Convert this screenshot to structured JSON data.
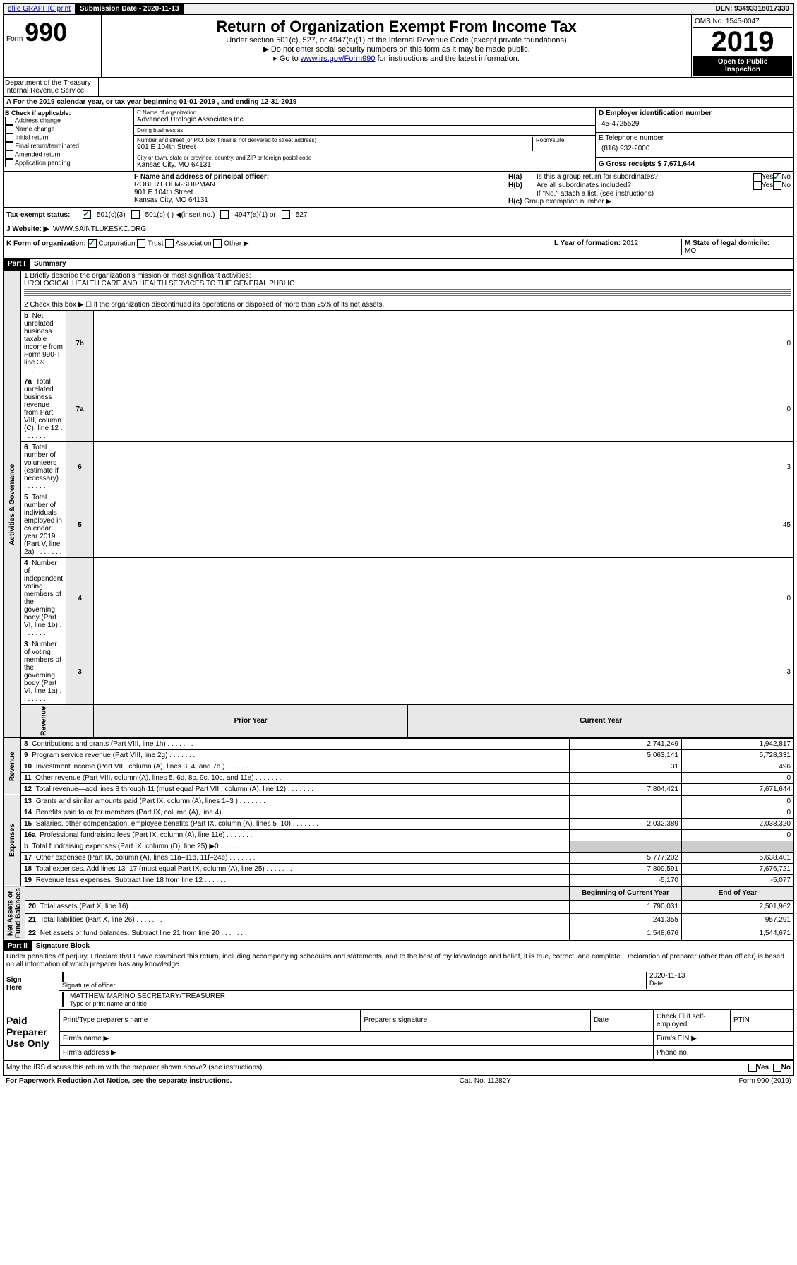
{
  "topbar": {
    "efile": "efile GRAPHIC print",
    "submission_label": "Submission Date - 2020-11-13",
    "dln": "DLN: 93493318017330"
  },
  "header": {
    "form": "Form",
    "form_no": "990",
    "title": "Return of Organization Exempt From Income Tax",
    "subtitle": "Under section 501(c), 527, or 4947(a)(1) of the Internal Revenue Code (except private foundations)",
    "note1": "Do not enter social security numbers on this form as it may be made public.",
    "note2_pre": "Go to ",
    "note2_link": "www.irs.gov/Form990",
    "note2_post": " for instructions and the latest information.",
    "dept": "Department of the Treasury\nInternal Revenue Service",
    "omb": "OMB No. 1545-0047",
    "year": "2019",
    "open": "Open to Public\nInspection"
  },
  "row_a": {
    "text": "A For the 2019 calendar year, or tax year beginning 01-01-2019   , and ending 12-31-2019"
  },
  "col_b": {
    "header": "B Check if applicable:",
    "items": [
      "Address change",
      "Name change",
      "Initial return",
      "Final return/terminated",
      "Amended return",
      "Application pending"
    ]
  },
  "col_c": {
    "name_label": "C Name of organization",
    "name": "Advanced Urologic Associates Inc",
    "dba_label": "Doing business as",
    "dba": "",
    "addr_label": "Number and street (or P.O. box if mail is not delivered to street address)",
    "room_label": "Room/suite",
    "addr": "901 E 104th Street",
    "city_label": "City or town, state or province, country, and ZIP or foreign postal code",
    "city": "Kansas City, MO  64131"
  },
  "col_d": {
    "ein_label": "D Employer identification number",
    "ein": "45-4725529",
    "tel_label": "E Telephone number",
    "tel": "(816) 932-2000",
    "gross_label": "G Gross receipts $ 7,671,644"
  },
  "officer": {
    "f_label": "F Name and address of principal officer:",
    "name": "ROBERT OLM-SHIPMAN",
    "addr1": "901 E 104th Street",
    "addr2": "Kansas City, MO  64131"
  },
  "h": {
    "ha_label": "H(a)",
    "ha_text": "Is this a group return for subordinates?",
    "hb_label": "H(b)",
    "hb_text": "Are all subordinates included?",
    "hb_note": "If \"No,\" attach a list. (see instructions)",
    "hc_label": "H(c)",
    "hc_text": "Group exemption number ▶",
    "yes": "Yes",
    "no": "No"
  },
  "tax_status": {
    "label": "Tax-exempt status:",
    "c501c3": "501(c)(3)",
    "c501c": "501(c) (  ) ◀(insert no.)",
    "c4947": "4947(a)(1) or",
    "c527": "527"
  },
  "website": {
    "label": "J   Website: ▶",
    "value": "WWW.SAINTLUKESKC.ORG"
  },
  "korg": {
    "label": "K Form of organization:",
    "corp": "Corporation",
    "trust": "Trust",
    "assoc": "Association",
    "other": "Other ▶",
    "l_label": "L Year of formation: ",
    "l_val": "2012",
    "m_label": "M State of legal domicile:",
    "m_val": "MO"
  },
  "part1": {
    "label": "Part I",
    "title": "Summary",
    "q1": "1  Briefly describe the organization's mission or most significant activities:",
    "q1_ans": "UROLOGICAL HEALTH CARE AND HEALTH SERVICES TO THE GENERAL PUBLIC",
    "q2": "2   Check this box ▶ ☐  if the organization discontinued its operations or disposed of more than 25% of its net assets.",
    "rows_gov": [
      {
        "n": "3",
        "t": "Number of voting members of the governing body (Part VI, line 1a)",
        "c": "3",
        "v": "3"
      },
      {
        "n": "4",
        "t": "Number of independent voting members of the governing body (Part VI, line 1b)",
        "c": "4",
        "v": "0"
      },
      {
        "n": "5",
        "t": "Total number of individuals employed in calendar year 2019 (Part V, line 2a)",
        "c": "5",
        "v": "45"
      },
      {
        "n": "6",
        "t": "Total number of volunteers (estimate if necessary)",
        "c": "6",
        "v": "3"
      },
      {
        "n": "7a",
        "t": "Total unrelated business revenue from Part VIII, column (C), line 12",
        "c": "7a",
        "v": "0"
      },
      {
        "n": " b",
        "t": "Net unrelated business taxable income from Form 990-T, line 39",
        "c": "7b",
        "v": "0"
      }
    ],
    "year_headers": {
      "prior": "Prior Year",
      "current": "Current Year"
    },
    "rows_rev": [
      {
        "n": "8",
        "t": "Contributions and grants (Part VIII, line 1h)",
        "p": "2,741,249",
        "c": "1,942,817"
      },
      {
        "n": "9",
        "t": "Program service revenue (Part VIII, line 2g)",
        "p": "5,063,141",
        "c": "5,728,331"
      },
      {
        "n": "10",
        "t": "Investment income (Part VIII, column (A), lines 3, 4, and 7d )",
        "p": "31",
        "c": "496"
      },
      {
        "n": "11",
        "t": "Other revenue (Part VIII, column (A), lines 5, 6d, 8c, 9c, 10c, and 11e)",
        "p": "",
        "c": "0"
      },
      {
        "n": "12",
        "t": "Total revenue—add lines 8 through 11 (must equal Part VIII, column (A), line 12)",
        "p": "7,804,421",
        "c": "7,671,644"
      }
    ],
    "rows_exp": [
      {
        "n": "13",
        "t": "Grants and similar amounts paid (Part IX, column (A), lines 1–3 )",
        "p": "",
        "c": "0"
      },
      {
        "n": "14",
        "t": "Benefits paid to or for members (Part IX, column (A), line 4)",
        "p": "",
        "c": "0"
      },
      {
        "n": "15",
        "t": "Salaries, other compensation, employee benefits (Part IX, column (A), lines 5–10)",
        "p": "2,032,389",
        "c": "2,038,320"
      },
      {
        "n": "16a",
        "t": "Professional fundraising fees (Part IX, column (A), line 11e)",
        "p": "",
        "c": "0"
      },
      {
        "n": "b",
        "t": "Total fundraising expenses (Part IX, column (D), line 25) ▶0",
        "p": "__gray__",
        "c": "__gray__"
      },
      {
        "n": "17",
        "t": "Other expenses (Part IX, column (A), lines 11a–11d, 11f–24e)",
        "p": "5,777,202",
        "c": "5,638,401"
      },
      {
        "n": "18",
        "t": "Total expenses. Add lines 13–17 (must equal Part IX, column (A), line 25)",
        "p": "7,809,591",
        "c": "7,676,721"
      },
      {
        "n": "19",
        "t": "Revenue less expenses. Subtract line 18 from line 12",
        "p": "-5,170",
        "c": "-5,077"
      }
    ],
    "net_headers": {
      "begin": "Beginning of Current Year",
      "end": "End of Year"
    },
    "rows_net": [
      {
        "n": "20",
        "t": "Total assets (Part X, line 16)",
        "p": "1,790,031",
        "c": "2,501,962"
      },
      {
        "n": "21",
        "t": "Total liabilities (Part X, line 26)",
        "p": "241,355",
        "c": "957,291"
      },
      {
        "n": "22",
        "t": "Net assets or fund balances. Subtract line 21 from line 20",
        "p": "1,548,676",
        "c": "1,544,671"
      }
    ],
    "vert_gov": "Activities & Governance",
    "vert_rev": "Revenue",
    "vert_exp": "Expenses",
    "vert_net": "Net Assets or\nFund Balances"
  },
  "part2": {
    "label": "Part II",
    "title": "Signature Block",
    "perjury": "Under penalties of perjury, I declare that I have examined this return, including accompanying schedules and statements, and to the best of my knowledge and belief, it is true, correct, and complete. Declaration of preparer (other than officer) is based on all information of which preparer has any knowledge.",
    "sign_here": "Sign\nHere",
    "sig_officer": "Signature of officer",
    "date": "2020-11-13",
    "date_label": "Date",
    "name_title": "MATTHEW MARINO  SECRETARY/TREASURER",
    "type_label": "Type or print name and title",
    "paid": "Paid\nPreparer\nUse Only",
    "prep_name": "Print/Type preparer's name",
    "prep_sig": "Preparer's signature",
    "prep_date": "Date",
    "check_se": "Check ☐ if self-employed",
    "ptin": "PTIN",
    "firm_name": "Firm's name  ▶",
    "firm_ein": "Firm's EIN ▶",
    "firm_addr": "Firm's address ▶",
    "phone": "Phone no.",
    "discuss": "May the IRS discuss this return with the preparer shown above? (see instructions)",
    "yes": "Yes",
    "no": "No"
  },
  "footer": {
    "paperwork": "For Paperwork Reduction Act Notice, see the separate instructions.",
    "cat": "Cat. No. 11282Y",
    "form": "Form 990 (2019)"
  }
}
